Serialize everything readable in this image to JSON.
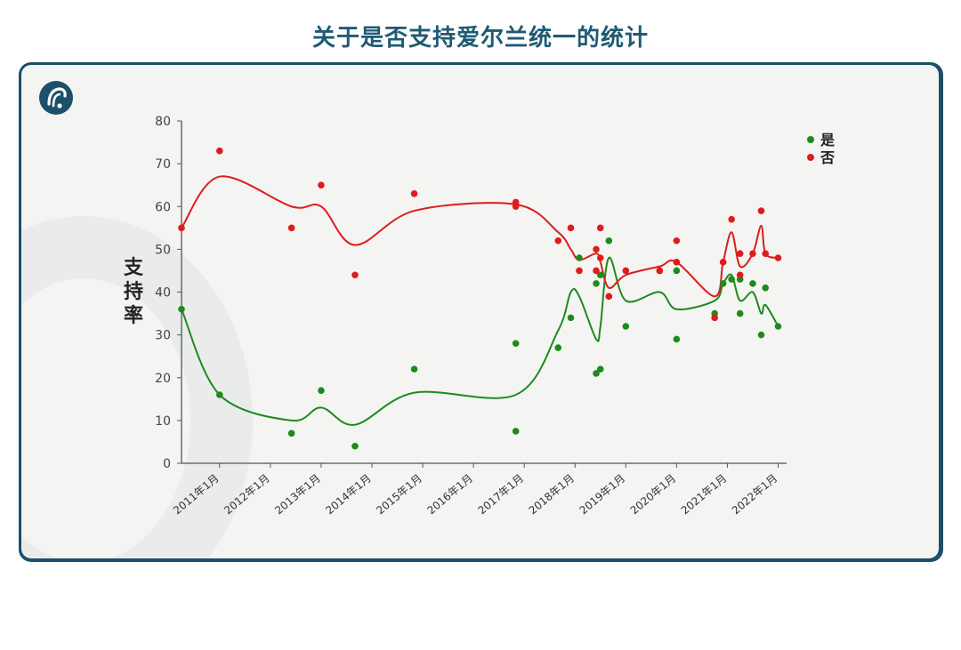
{
  "header": {
    "title": "关于是否支持爱尔兰统一的统计"
  },
  "chart_data": {
    "type": "scatter",
    "ylabel": "支持率",
    "xlabel": "",
    "ylim": [
      0,
      80
    ],
    "yticks": [
      0,
      10,
      20,
      30,
      40,
      50,
      60,
      70,
      80
    ],
    "xticks": [
      "2011年1月",
      "2012年1月",
      "2013年1月",
      "2014年1月",
      "2015年1月",
      "2016年1月",
      "2017年1月",
      "2018年1月",
      "2019年1月",
      "2020年1月",
      "2021年1月",
      "2022年1月"
    ],
    "xrange": [
      "2010-06",
      "2022-03"
    ],
    "legend": "top-right",
    "smoothed_lines": true,
    "series": [
      {
        "name": "是",
        "color": "#1e8a1e",
        "points": [
          [
            "2010-04",
            36
          ],
          [
            "2011-01",
            16
          ],
          [
            "2012-06",
            7
          ],
          [
            "2013-01",
            17
          ],
          [
            "2013-09",
            4
          ],
          [
            "2014-11",
            22
          ],
          [
            "2016-11",
            7.5
          ],
          [
            "2016-11",
            28
          ],
          [
            "2017-09",
            27
          ],
          [
            "2017-12",
            34
          ],
          [
            "2018-02",
            48
          ],
          [
            "2018-06",
            21
          ],
          [
            "2018-06",
            42
          ],
          [
            "2018-07",
            22
          ],
          [
            "2018-07",
            44
          ],
          [
            "2018-09",
            52
          ],
          [
            "2019-01",
            32
          ],
          [
            "2019-09",
            45
          ],
          [
            "2020-01",
            29
          ],
          [
            "2020-01",
            45
          ],
          [
            "2020-10",
            35
          ],
          [
            "2020-12",
            42
          ],
          [
            "2021-02",
            43
          ],
          [
            "2021-04",
            43
          ],
          [
            "2021-04",
            35
          ],
          [
            "2021-07",
            42
          ],
          [
            "2021-09",
            30
          ],
          [
            "2021-10",
            41
          ],
          [
            "2022-01",
            32
          ]
        ]
      },
      {
        "name": "否",
        "color": "#dd1c1c",
        "points": [
          [
            "2010-04",
            55
          ],
          [
            "2011-01",
            73
          ],
          [
            "2012-06",
            55
          ],
          [
            "2013-01",
            65
          ],
          [
            "2013-09",
            44
          ],
          [
            "2014-11",
            63
          ],
          [
            "2016-11",
            61
          ],
          [
            "2016-11",
            60
          ],
          [
            "2017-09",
            52
          ],
          [
            "2017-12",
            55
          ],
          [
            "2018-02",
            45
          ],
          [
            "2018-06",
            45
          ],
          [
            "2018-06",
            50
          ],
          [
            "2018-07",
            55
          ],
          [
            "2018-07",
            48
          ],
          [
            "2018-09",
            39
          ],
          [
            "2019-01",
            45
          ],
          [
            "2019-09",
            45
          ],
          [
            "2020-01",
            52
          ],
          [
            "2020-01",
            47
          ],
          [
            "2020-10",
            34
          ],
          [
            "2020-12",
            47
          ],
          [
            "2021-02",
            57
          ],
          [
            "2021-04",
            49
          ],
          [
            "2021-04",
            44
          ],
          [
            "2021-07",
            49
          ],
          [
            "2021-09",
            59
          ],
          [
            "2021-10",
            49
          ],
          [
            "2022-01",
            48
          ]
        ]
      }
    ],
    "trend_lines": [
      {
        "series": "是",
        "points": [
          [
            "2010-04",
            36
          ],
          [
            "2011-01",
            16
          ],
          [
            "2012-06",
            10
          ],
          [
            "2013-01",
            13
          ],
          [
            "2013-09",
            9
          ],
          [
            "2014-11",
            16.5
          ],
          [
            "2016-11",
            16
          ],
          [
            "2017-09",
            31
          ],
          [
            "2017-12",
            40
          ],
          [
            "2018-02",
            39
          ],
          [
            "2018-06",
            29
          ],
          [
            "2018-07",
            32
          ],
          [
            "2018-09",
            48
          ],
          [
            "2019-01",
            38
          ],
          [
            "2019-09",
            40
          ],
          [
            "2020-01",
            36
          ],
          [
            "2020-10",
            38
          ],
          [
            "2020-12",
            42
          ],
          [
            "2021-02",
            44
          ],
          [
            "2021-04",
            38
          ],
          [
            "2021-07",
            40
          ],
          [
            "2021-09",
            35
          ],
          [
            "2021-10",
            37
          ],
          [
            "2022-01",
            32
          ]
        ]
      },
      {
        "series": "否",
        "points": [
          [
            "2010-04",
            55
          ],
          [
            "2011-01",
            67
          ],
          [
            "2012-06",
            60
          ],
          [
            "2013-01",
            60
          ],
          [
            "2013-09",
            51
          ],
          [
            "2014-11",
            59
          ],
          [
            "2016-11",
            60.5
          ],
          [
            "2017-09",
            54
          ],
          [
            "2017-12",
            50
          ],
          [
            "2018-02",
            47.5
          ],
          [
            "2018-06",
            49
          ],
          [
            "2018-07",
            47
          ],
          [
            "2018-09",
            41
          ],
          [
            "2019-01",
            44
          ],
          [
            "2019-09",
            46
          ],
          [
            "2020-01",
            47
          ],
          [
            "2020-10",
            39
          ],
          [
            "2020-12",
            47
          ],
          [
            "2021-02",
            54
          ],
          [
            "2021-04",
            46
          ],
          [
            "2021-07",
            49
          ],
          [
            "2021-09",
            55.5
          ],
          [
            "2021-10",
            49
          ],
          [
            "2022-01",
            48
          ]
        ]
      }
    ]
  }
}
